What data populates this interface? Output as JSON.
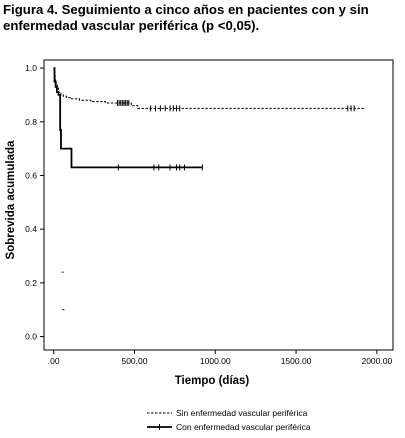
{
  "caption": "Figura 4. Seguimiento a cinco años en pacientes con y sin enfermedad vascular periférica (p <0,05).",
  "chart_data": {
    "type": "line",
    "step": true,
    "xlabel": "Tiempo (días)",
    "ylabel": "Sobrevida acumulada",
    "xlim": [
      -60,
      2100
    ],
    "ylim": [
      -0.05,
      1.03
    ],
    "xticks": [
      0,
      500,
      1000,
      1500,
      2000
    ],
    "xtick_labels": [
      ".00",
      "500.00",
      "1000.00",
      "1500.00",
      "2000.00"
    ],
    "yticks": [
      0.0,
      0.2,
      0.4,
      0.6,
      0.8,
      1.0
    ],
    "ytick_labels": [
      "0.0",
      "0.2",
      "0.4",
      "0.6",
      "0.8",
      "1.0"
    ],
    "grid": false,
    "legend_position": "bottom-center",
    "series": [
      {
        "name": "Sin enfermedad vascular periférica",
        "style": "dashed",
        "color": "#000000",
        "x": [
          0,
          3,
          6,
          10,
          15,
          22,
          30,
          45,
          60,
          80,
          110,
          160,
          230,
          320,
          480,
          520,
          1920
        ],
        "y": [
          1.0,
          0.985,
          0.97,
          0.955,
          0.94,
          0.925,
          0.91,
          0.9,
          0.895,
          0.89,
          0.885,
          0.88,
          0.875,
          0.87,
          0.86,
          0.85,
          0.85
        ],
        "censored_x": [
          395,
          405,
          415,
          425,
          435,
          445,
          455,
          465,
          600,
          630,
          660,
          690,
          720,
          740,
          760,
          780,
          1820,
          1840,
          1860
        ]
      },
      {
        "name": "Con enfermedad vascular periférica",
        "style": "solid",
        "color": "#000000",
        "x": [
          0,
          5,
          12,
          20,
          30,
          40,
          45,
          100,
          110,
          920
        ],
        "y": [
          1.0,
          0.95,
          0.93,
          0.91,
          0.9,
          0.77,
          0.7,
          0.7,
          0.63,
          0.63
        ],
        "censored_x": [
          400,
          620,
          650,
          720,
          760,
          780,
          810,
          920
        ]
      }
    ],
    "stray_marks": [
      {
        "x": 55,
        "y": 0.24
      },
      {
        "x": 60,
        "y": 0.1
      }
    ]
  }
}
